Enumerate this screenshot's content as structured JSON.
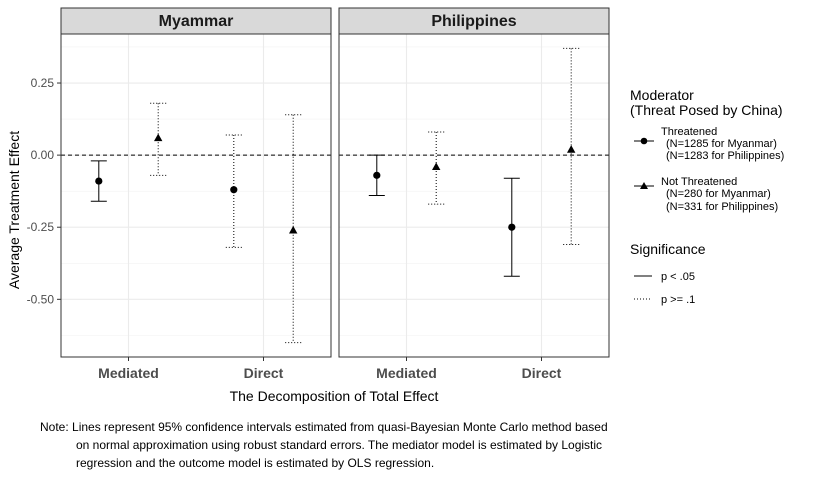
{
  "chart_data": {
    "type": "scatter",
    "panels": [
      "Myammar",
      "Philippines"
    ],
    "categories": [
      "Mediated",
      "Direct"
    ],
    "xlabel": "The Decomposition of Total Effect",
    "ylabel": "Average Treatment Effect",
    "yticks": [
      0.25,
      0.0,
      -0.25,
      -0.5
    ],
    "ytick_labels": [
      "0.25",
      "0.00",
      "-0.25",
      "-0.50"
    ],
    "ylim": [
      -0.7,
      0.42
    ],
    "reference_line": 0,
    "series": [
      {
        "name": "Threatened",
        "marker": "circle",
        "points": [
          {
            "panel": "Myammar",
            "category": "Mediated",
            "estimate": -0.09,
            "lower": -0.16,
            "upper": -0.02,
            "significance": "p < .05"
          },
          {
            "panel": "Myammar",
            "category": "Direct",
            "estimate": -0.12,
            "lower": -0.32,
            "upper": 0.07,
            "significance": "p >= .1"
          },
          {
            "panel": "Philippines",
            "category": "Mediated",
            "estimate": -0.07,
            "lower": -0.14,
            "upper": 0.0,
            "significance": "p < .05"
          },
          {
            "panel": "Philippines",
            "category": "Direct",
            "estimate": -0.25,
            "lower": -0.42,
            "upper": -0.08,
            "significance": "p < .05"
          }
        ]
      },
      {
        "name": "Not Threatened",
        "marker": "triangle",
        "points": [
          {
            "panel": "Myammar",
            "category": "Mediated",
            "estimate": 0.06,
            "lower": -0.07,
            "upper": 0.18,
            "significance": "p >= .1"
          },
          {
            "panel": "Myammar",
            "category": "Direct",
            "estimate": -0.26,
            "lower": -0.65,
            "upper": 0.14,
            "significance": "p >= .1"
          },
          {
            "panel": "Philippines",
            "category": "Mediated",
            "estimate": -0.04,
            "lower": -0.17,
            "upper": 0.08,
            "significance": "p >= .1"
          },
          {
            "panel": "Philippines",
            "category": "Direct",
            "estimate": 0.02,
            "lower": -0.31,
            "upper": 0.37,
            "significance": "p >= .1"
          }
        ]
      }
    ],
    "legend": {
      "placement": "right",
      "moderator_title_line1": "Moderator",
      "moderator_title_line2": "(Threat Posed by China)",
      "threatened_line1": "Threatened",
      "threatened_line2": "(N=1285 for Myanmar)",
      "threatened_line3": "(N=1283 for Philippines)",
      "not_threatened_line1": "Not Threatened",
      "not_threatened_line2": "(N=280 for Myanmar)",
      "not_threatened_line3": "(N=331 for Philippines)",
      "significance_title": "Significance",
      "sig_solid_label": "p < .05",
      "sig_dotted_label": "p >= .1"
    },
    "grid": true
  },
  "note": {
    "line1": "Note: Lines represent 95% confidence intervals estimated from quasi-Bayesian Monte Carlo method based",
    "line2": "on normal approximation using robust standard errors. The mediator model is estimated by Logistic",
    "line3": "regression and the outcome model is estimated by OLS regression."
  }
}
